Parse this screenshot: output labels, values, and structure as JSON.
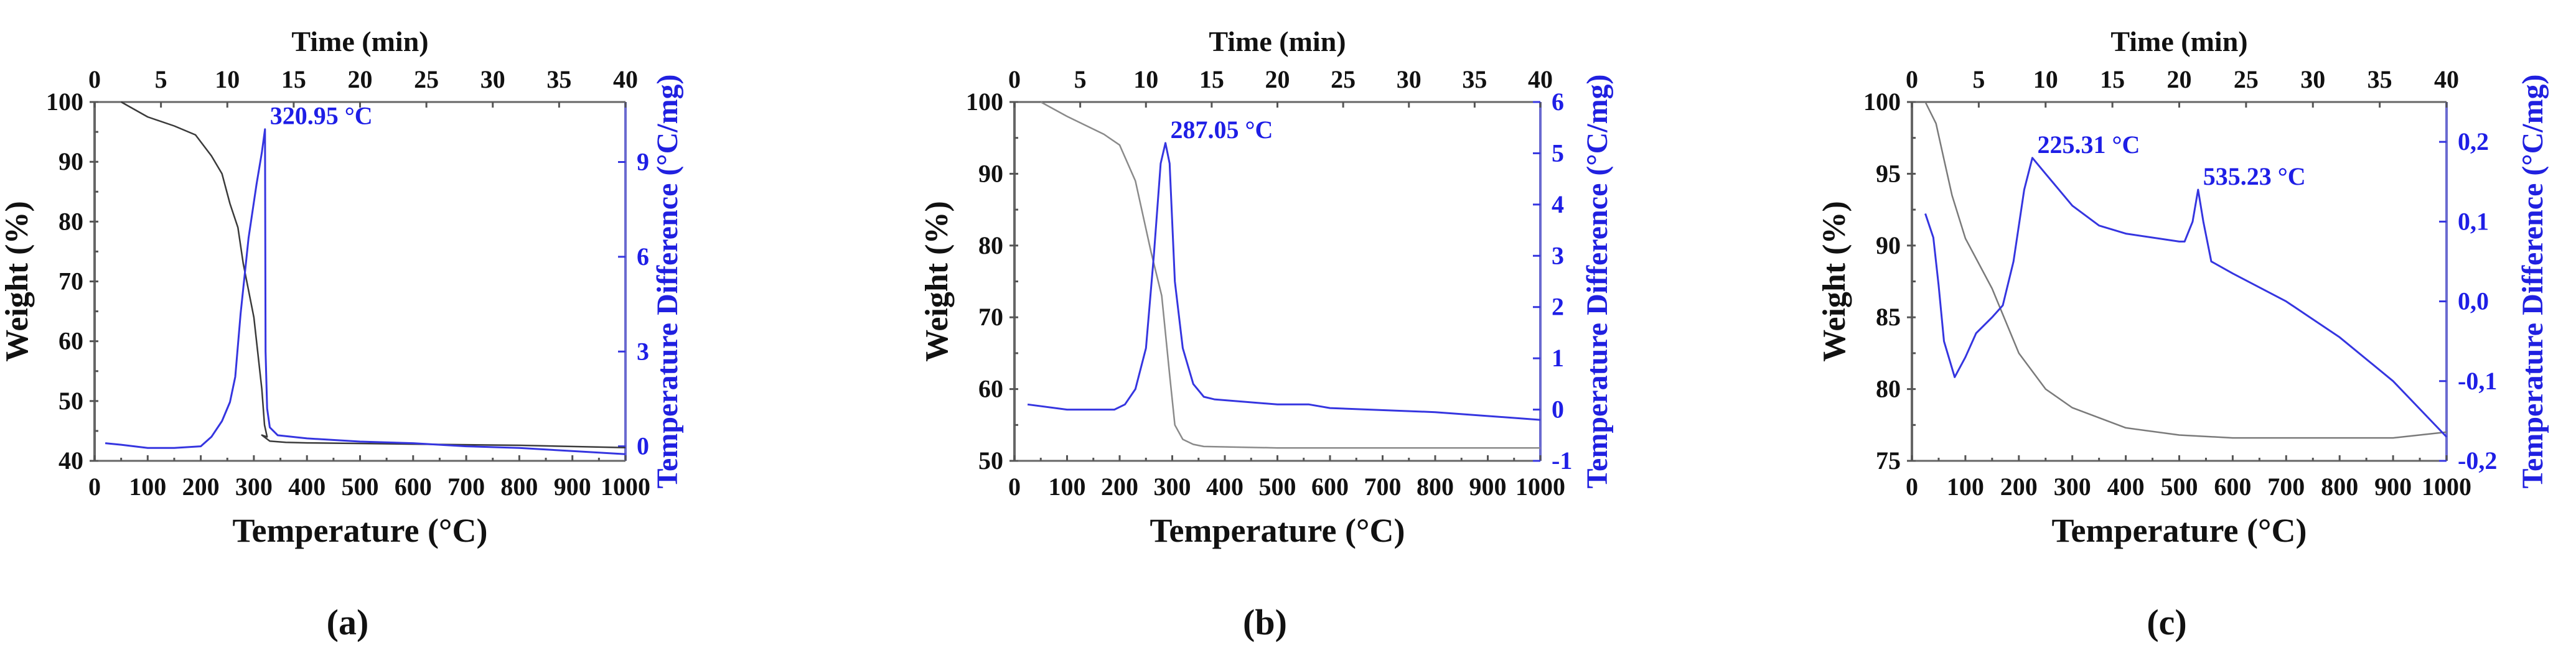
{
  "chart_data": [
    {
      "type": "line",
      "panel_label": "(a)",
      "xlabel": "Temperature (°C)",
      "x2label": "Time (min)",
      "ylabel": "Weight (%)",
      "y2label": "Temperature Difference (°C/mg)",
      "xlim": [
        0,
        1000
      ],
      "x2lim": [
        0,
        40
      ],
      "ylim": [
        40,
        100
      ],
      "y2lim": [
        -0.46,
        10.9
      ],
      "xticks": [
        0,
        100,
        200,
        300,
        400,
        500,
        600,
        700,
        800,
        900,
        1000
      ],
      "x2ticks": [
        0,
        5,
        10,
        15,
        20,
        25,
        30,
        35,
        40
      ],
      "yticks": [
        40,
        50,
        60,
        70,
        80,
        90,
        100
      ],
      "y2ticks": [
        0,
        3,
        6,
        9
      ],
      "y2ticklabels": [
        "0",
        "3",
        "6",
        "9"
      ],
      "colors": {
        "weight": "#3a3a3a",
        "dta": "#3535e0",
        "label": "#1e1ee6"
      },
      "annotations": [
        {
          "text": "320.95 °C",
          "x": 320.95,
          "y2": 10.04
        }
      ],
      "series": [
        {
          "name": "Weight",
          "axis": "left",
          "x": [
            50,
            100,
            150,
            190,
            220,
            240,
            255,
            270,
            280,
            300,
            315,
            320,
            325,
            315,
            330,
            360,
            400,
            600,
            800,
            1000
          ],
          "y": [
            100,
            97.5,
            96,
            94.5,
            91,
            88,
            83,
            79,
            73,
            64,
            52,
            46,
            44,
            44.3,
            43.3,
            43.1,
            43,
            42.8,
            42.6,
            42.2
          ]
        },
        {
          "name": "Temperature Difference",
          "axis": "right",
          "x": [
            20,
            50,
            100,
            150,
            200,
            220,
            240,
            255,
            265,
            275,
            290,
            305,
            315,
            320.95,
            322,
            325,
            330,
            345,
            400,
            500,
            600,
            700,
            800,
            900,
            1000
          ],
          "y": [
            0.1,
            0.05,
            -0.05,
            -0.05,
            0,
            0.3,
            0.8,
            1.4,
            2.2,
            4.2,
            6.6,
            8.3,
            9.3,
            10.04,
            3,
            1.2,
            0.6,
            0.35,
            0.25,
            0.15,
            0.1,
            0,
            -0.05,
            -0.15,
            -0.25
          ]
        }
      ]
    },
    {
      "type": "line",
      "panel_label": "(b)",
      "xlabel": "Temperature (°C)",
      "x2label": "Time (min)",
      "ylabel": "Weight (%)",
      "y2label": "Temperature Difference (°C/mg)",
      "xlim": [
        0,
        1000
      ],
      "x2lim": [
        0,
        40
      ],
      "ylim": [
        50,
        100
      ],
      "y2lim": [
        -1,
        6
      ],
      "xticks": [
        0,
        100,
        200,
        300,
        400,
        500,
        600,
        700,
        800,
        900,
        1000
      ],
      "x2ticks": [
        0,
        5,
        10,
        15,
        20,
        25,
        30,
        35,
        40
      ],
      "yticks": [
        50,
        60,
        70,
        80,
        90,
        100
      ],
      "y2ticks": [
        -1,
        0,
        1,
        2,
        3,
        4,
        5,
        6
      ],
      "y2ticklabels": [
        "-1",
        "0",
        "1",
        "2",
        "3",
        "4",
        "5",
        "6"
      ],
      "colors": {
        "weight": "#8a8a8a",
        "dta": "#3535e0",
        "label": "#1e1ee6"
      },
      "annotations": [
        {
          "text": "287.05 °C",
          "x": 287.05,
          "y2": 5.2
        }
      ],
      "series": [
        {
          "name": "Weight",
          "axis": "left",
          "x": [
            50,
            100,
            170,
            200,
            230,
            260,
            280,
            295,
            305,
            320,
            340,
            360,
            500,
            1000
          ],
          "y": [
            100,
            98,
            95.5,
            94,
            89,
            79,
            73,
            62,
            55,
            53,
            52.3,
            52,
            51.8,
            51.8
          ]
        },
        {
          "name": "Temperature Difference",
          "axis": "right",
          "x": [
            25,
            100,
            190,
            210,
            230,
            250,
            265,
            278,
            287.05,
            295,
            305,
            320,
            340,
            360,
            380,
            500,
            560,
            600,
            800,
            1000
          ],
          "y": [
            0.1,
            0,
            0,
            0.1,
            0.4,
            1.2,
            3,
            4.8,
            5.2,
            4.8,
            2.5,
            1.2,
            0.5,
            0.25,
            0.2,
            0.1,
            0.1,
            0.03,
            -0.05,
            -0.2
          ]
        }
      ]
    },
    {
      "type": "line",
      "panel_label": "(c)",
      "xlabel": "Temperature (°C)",
      "x2label": "Time (min)",
      "ylabel": "Weight (%)",
      "y2label": "Temperature Difference (°C/mg)",
      "xlim": [
        0,
        1000
      ],
      "x2lim": [
        0,
        40
      ],
      "ylim": [
        75,
        100
      ],
      "y2lim": [
        -0.2,
        0.25
      ],
      "xticks": [
        0,
        100,
        200,
        300,
        400,
        500,
        600,
        700,
        800,
        900,
        1000
      ],
      "x2ticks": [
        0,
        5,
        10,
        15,
        20,
        25,
        30,
        35,
        40
      ],
      "yticks": [
        75,
        80,
        85,
        90,
        95,
        100
      ],
      "y2ticks": [
        -0.2,
        -0.1,
        0,
        0.1,
        0.2
      ],
      "y2ticklabels": [
        "-0,2",
        "-0,1",
        "0,0",
        "0,1",
        "0,2"
      ],
      "colors": {
        "weight": "#7a7a7a",
        "dta": "#3535e0",
        "label": "#1e1ee6"
      },
      "annotations": [
        {
          "text": "225.31 °C",
          "x": 225.31,
          "y2": 0.18
        },
        {
          "text": "535.23 °C",
          "x": 535.23,
          "y2": 0.14
        }
      ],
      "series": [
        {
          "name": "Weight",
          "axis": "left",
          "x": [
            25,
            45,
            60,
            75,
            100,
            150,
            200,
            250,
            300,
            400,
            500,
            600,
            900,
            1000
          ],
          "y": [
            100,
            98.5,
            96,
            93.5,
            90.5,
            87,
            82.5,
            80,
            78.7,
            77.3,
            76.8,
            76.6,
            76.6,
            77
          ]
        },
        {
          "name": "Temperature Difference",
          "axis": "right",
          "x": [
            25,
            40,
            50,
            60,
            80,
            100,
            120,
            150,
            170,
            190,
            210,
            225.31,
            250,
            300,
            350,
            400,
            500,
            510,
            525,
            535.23,
            545,
            560,
            600,
            700,
            800,
            900,
            1000
          ],
          "y": [
            0.11,
            0.08,
            0.02,
            -0.05,
            -0.095,
            -0.07,
            -0.04,
            -0.02,
            -0.005,
            0.05,
            0.14,
            0.18,
            0.16,
            0.12,
            0.095,
            0.085,
            0.075,
            0.075,
            0.1,
            0.14,
            0.1,
            0.05,
            0.035,
            0,
            -0.045,
            -0.1,
            -0.17
          ]
        }
      ]
    }
  ]
}
